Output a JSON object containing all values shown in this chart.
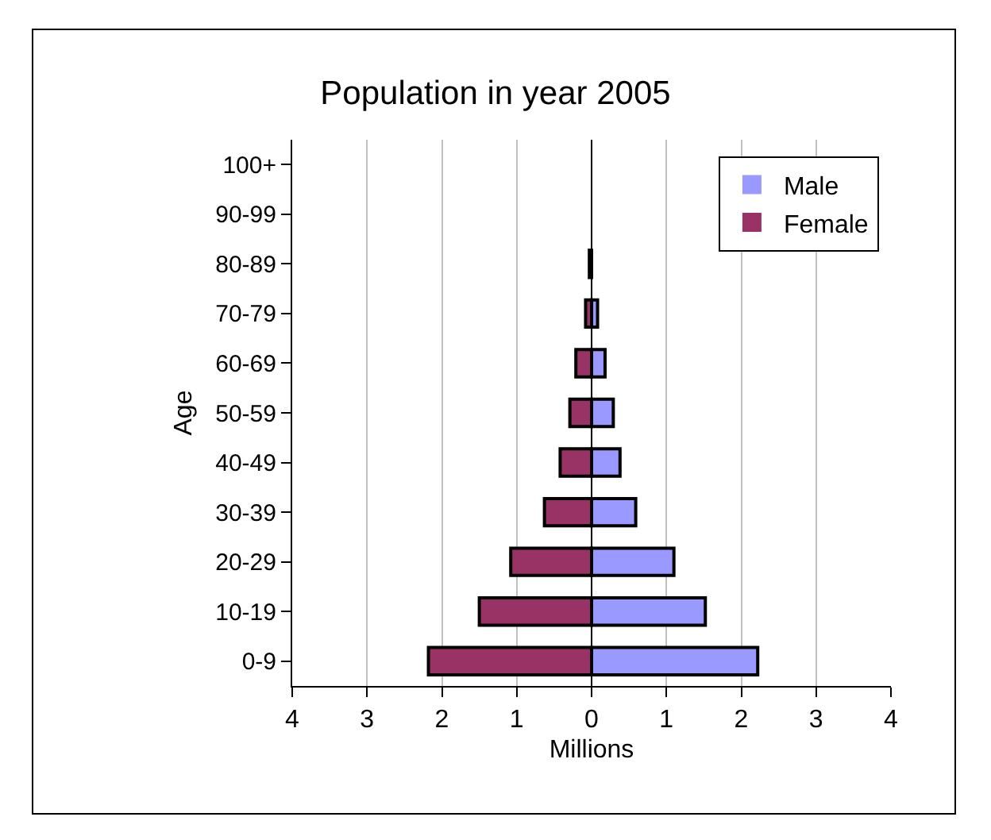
{
  "chart_data": {
    "type": "bar",
    "orientation": "horizontal",
    "title": "Population in year 2005",
    "xlabel": "Millions",
    "ylabel": "Age",
    "categories": [
      "100+",
      "90-99",
      "80-89",
      "70-79",
      "60-69",
      "50-59",
      "40-49",
      "30-39",
      "20-29",
      "10-19",
      "0-9"
    ],
    "series": [
      {
        "name": "Male",
        "color": "#9999ff",
        "values": [
          0,
          0,
          null,
          0.08,
          0.18,
          0.29,
          0.38,
          0.59,
          1.1,
          1.52,
          2.22
        ]
      },
      {
        "name": "Female",
        "color": "#993366",
        "values": [
          0,
          0,
          -0.03,
          -0.08,
          -0.21,
          -0.29,
          -0.42,
          -0.63,
          -1.08,
          -1.5,
          -2.18
        ]
      }
    ],
    "xlim": [
      -4,
      4
    ],
    "xticks": [
      {
        "value": -4,
        "label": "4"
      },
      {
        "value": -3,
        "label": "3"
      },
      {
        "value": -2,
        "label": "2"
      },
      {
        "value": -1,
        "label": "1"
      },
      0,
      1,
      2,
      3,
      4
    ],
    "grid": "x",
    "legend": "top right",
    "stacked": true
  }
}
